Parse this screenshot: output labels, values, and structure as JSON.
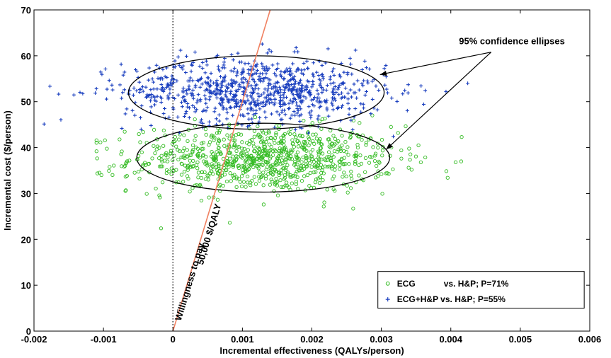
{
  "chart_data": {
    "type": "scatter",
    "xlabel": "Incremental effectiveness (QALYs/person)",
    "ylabel": "Incremental cost ($/person)",
    "xlim": [
      -0.002,
      0.006
    ],
    "ylim": [
      0,
      70
    ],
    "x_ticks": [
      "-0.002",
      "-0.001",
      "0",
      "0.001",
      "0.002",
      "0.003",
      "0.004",
      "0.005",
      "0.006"
    ],
    "y_ticks": [
      "0",
      "10",
      "20",
      "30",
      "40",
      "50",
      "60",
      "70"
    ],
    "grid": false,
    "legend_position": "bottom-right",
    "series": [
      {
        "name": "ECG            vs. H&P; P=71%",
        "color": "#33bb22",
        "marker": "circle",
        "center": [
          0.0013,
          37.5
        ],
        "spread": [
          0.00095,
          3.6
        ],
        "n_points": 900,
        "approx_range_x": [
          -0.0011,
          0.0046
        ],
        "approx_range_y": [
          21,
          47
        ]
      },
      {
        "name": "ECG+H&P vs. H&P; P=55%",
        "color": "#1a3fbf",
        "marker": "plus",
        "center": [
          0.0012,
          52.5
        ],
        "spread": [
          0.00095,
          3.5
        ],
        "n_points": 900,
        "approx_range_x": [
          -0.0019,
          0.0052
        ],
        "approx_range_y": [
          40,
          68
        ]
      }
    ],
    "ellipses": [
      {
        "center": [
          0.0012,
          52.0
        ],
        "semi_axis_x": 0.00184,
        "semi_axis_y": 8.0
      },
      {
        "center": [
          0.0013,
          37.8
        ],
        "semi_axis_x": 0.00182,
        "semi_axis_y": 7.5
      }
    ],
    "reference_lines": [
      {
        "type": "vertical",
        "x": 0,
        "style": "dotted",
        "color": "#000000"
      },
      {
        "type": "wtp",
        "slope_per_qaly": 50000,
        "color": "#f08060",
        "label_line1": "Willingness to pay",
        "label_line2": "50,000 $/QALY"
      }
    ],
    "annotations": {
      "ellipse_label": "95% confidence ellipses"
    }
  }
}
